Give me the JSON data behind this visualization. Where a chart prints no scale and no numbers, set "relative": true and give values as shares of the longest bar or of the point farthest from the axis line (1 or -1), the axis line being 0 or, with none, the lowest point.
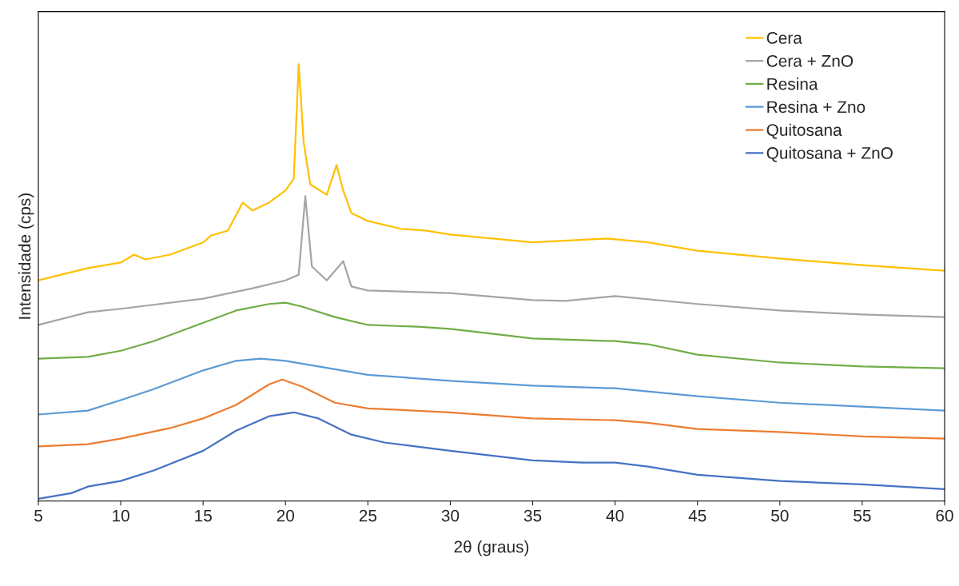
{
  "chart_data": {
    "type": "line",
    "relative": true,
    "xlabel": "2θ (graus)",
    "ylabel": "Intensidade (cps)",
    "xlim": [
      5,
      60
    ],
    "xticks": [
      5,
      10,
      15,
      20,
      25,
      30,
      35,
      40,
      45,
      50,
      55,
      60
    ],
    "grid": false,
    "legend": "top right",
    "marker": "none",
    "line_style": "solid",
    "series": [
      {
        "name": "Cera",
        "color": "#ffc000",
        "x": [
          5,
          8,
          10,
          10.8,
          11.5,
          13,
          15,
          15.5,
          16.5,
          17.4,
          18,
          19,
          20,
          20.5,
          20.8,
          21.1,
          21.5,
          22.5,
          23.1,
          23.5,
          24,
          25,
          27,
          28.5,
          30,
          35,
          39.5,
          42,
          45,
          50,
          55,
          60
        ],
        "values": [
          0.505,
          0.533,
          0.546,
          0.564,
          0.553,
          0.564,
          0.592,
          0.608,
          0.619,
          0.683,
          0.665,
          0.683,
          0.711,
          0.738,
          1.0,
          0.821,
          0.725,
          0.701,
          0.769,
          0.711,
          0.659,
          0.641,
          0.623,
          0.619,
          0.61,
          0.592,
          0.601,
          0.592,
          0.573,
          0.555,
          0.54,
          0.527
        ]
      },
      {
        "name": "Cera + ZnO",
        "color": "#a5a5a5",
        "x": [
          5,
          8,
          10,
          15,
          18,
          20,
          20.8,
          21.2,
          21.6,
          22.5,
          23.5,
          24,
          25,
          30,
          35,
          37,
          40,
          45,
          50,
          55,
          60
        ],
        "values": [
          0.403,
          0.432,
          0.44,
          0.463,
          0.487,
          0.505,
          0.518,
          0.698,
          0.537,
          0.505,
          0.549,
          0.491,
          0.482,
          0.476,
          0.46,
          0.458,
          0.469,
          0.451,
          0.436,
          0.427,
          0.421
        ]
      },
      {
        "name": "Resina",
        "color": "#70ad47",
        "x": [
          5,
          8,
          10,
          12,
          15,
          17,
          19,
          20,
          21,
          23,
          25,
          28,
          30,
          35,
          40,
          42,
          45,
          50,
          55,
          60
        ],
        "values": [
          0.326,
          0.33,
          0.344,
          0.366,
          0.408,
          0.436,
          0.451,
          0.454,
          0.445,
          0.421,
          0.403,
          0.399,
          0.394,
          0.372,
          0.366,
          0.359,
          0.335,
          0.317,
          0.308,
          0.304
        ]
      },
      {
        "name": "Resina + Zno",
        "color": "#5b9bd5",
        "x": [
          5,
          8,
          10,
          12,
          15,
          17,
          18.5,
          20,
          22,
          25,
          30,
          35,
          40,
          45,
          50,
          55,
          60
        ],
        "values": [
          0.198,
          0.207,
          0.231,
          0.256,
          0.299,
          0.321,
          0.326,
          0.321,
          0.308,
          0.289,
          0.275,
          0.264,
          0.258,
          0.24,
          0.225,
          0.216,
          0.207
        ]
      },
      {
        "name": "Quitosana",
        "color": "#ed7d31",
        "x": [
          5,
          8,
          10,
          13,
          15,
          17,
          19,
          19.8,
          21,
          23,
          25,
          30,
          35,
          40,
          42,
          45,
          50,
          55,
          60
        ],
        "values": [
          0.125,
          0.13,
          0.143,
          0.167,
          0.189,
          0.22,
          0.267,
          0.278,
          0.262,
          0.225,
          0.212,
          0.203,
          0.189,
          0.185,
          0.179,
          0.165,
          0.158,
          0.148,
          0.143
        ]
      },
      {
        "name": "Quitosana + ZnO",
        "color": "#4472c4",
        "x": [
          5,
          7,
          8,
          10,
          12,
          15,
          17,
          19,
          20.5,
          22,
          24,
          26,
          30,
          35,
          38,
          40,
          42,
          45,
          50,
          55,
          60
        ],
        "values": [
          0.005,
          0.018,
          0.033,
          0.046,
          0.07,
          0.115,
          0.161,
          0.194,
          0.203,
          0.189,
          0.152,
          0.134,
          0.115,
          0.093,
          0.088,
          0.088,
          0.079,
          0.06,
          0.046,
          0.038,
          0.027
        ]
      }
    ]
  }
}
